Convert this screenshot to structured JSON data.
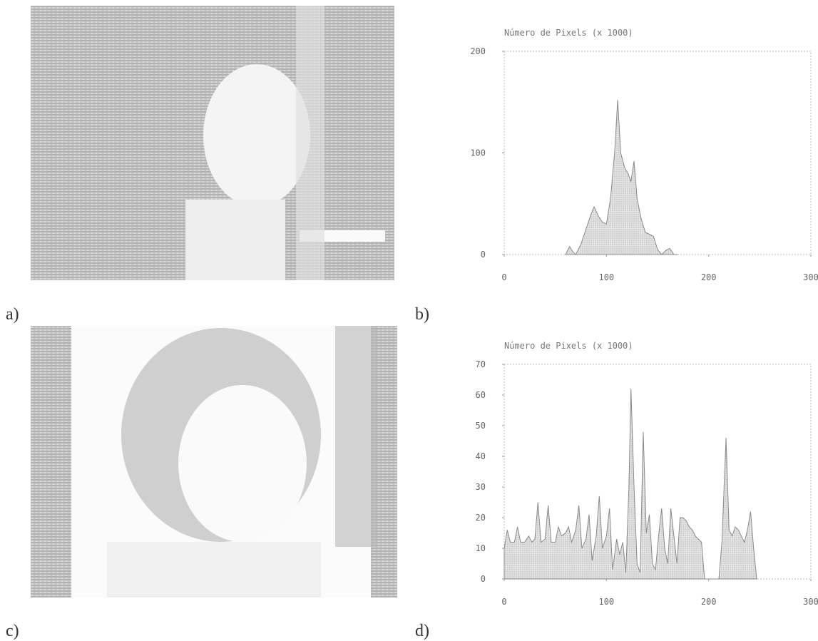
{
  "panel_labels": [
    "a)",
    "b)",
    "c)",
    "d)"
  ],
  "chart_data": [
    {
      "type": "area",
      "title": "Número de Pixels (x 1000)",
      "color": "#8a8a8a",
      "x": [
        60,
        64,
        67,
        70,
        75,
        80,
        85,
        88,
        92,
        96,
        100,
        104,
        108,
        111,
        114,
        118,
        121,
        124,
        127,
        130,
        134,
        138,
        142,
        146,
        150,
        154,
        158,
        162,
        166,
        170
      ],
      "values": [
        0,
        8,
        3,
        0,
        10,
        25,
        40,
        47,
        38,
        32,
        30,
        55,
        100,
        152,
        100,
        85,
        80,
        72,
        92,
        55,
        35,
        22,
        20,
        18,
        5,
        0,
        4,
        6,
        0,
        0
      ],
      "xlim": [
        0,
        300
      ],
      "xticks": [
        0,
        100,
        200,
        300
      ],
      "ylim": [
        0,
        200
      ],
      "yticks": [
        0,
        100,
        200
      ]
    },
    {
      "type": "area",
      "title": "Número de Pixels (x 1000)",
      "color": "#8a8a8a",
      "x": [
        0,
        3,
        6,
        10,
        13,
        16,
        20,
        24,
        27,
        30,
        33,
        36,
        40,
        43,
        46,
        50,
        53,
        56,
        60,
        63,
        66,
        70,
        73,
        76,
        80,
        83,
        86,
        90,
        93,
        96,
        100,
        103,
        106,
        110,
        113,
        116,
        119,
        122,
        124,
        127,
        130,
        133,
        136,
        139,
        142,
        145,
        148,
        151,
        154,
        157,
        160,
        163,
        166,
        169,
        172,
        175,
        178,
        181,
        184,
        187,
        190,
        193,
        196,
        210,
        213,
        217,
        220,
        223,
        226,
        229,
        232,
        235,
        238,
        241,
        244,
        247
      ],
      "values": [
        10,
        16,
        12,
        12,
        17,
        12,
        12,
        14,
        12,
        13,
        25,
        12,
        13,
        24,
        12,
        12,
        17,
        14,
        15,
        17,
        12,
        16,
        24,
        10,
        13,
        21,
        6,
        14,
        27,
        10,
        14,
        23,
        3,
        13,
        8,
        12,
        2,
        30,
        62,
        30,
        5,
        2,
        48,
        15,
        21,
        5,
        3,
        14,
        23,
        10,
        5,
        23,
        14,
        5,
        20,
        20,
        19,
        17,
        16,
        14,
        13,
        12,
        0,
        0,
        12,
        46,
        16,
        14,
        17,
        16,
        14,
        12,
        16,
        22,
        10,
        0
      ],
      "xlim": [
        0,
        300
      ],
      "xticks": [
        0,
        100,
        200,
        300
      ],
      "ylim": [
        0,
        70
      ],
      "yticks": [
        0,
        10,
        20,
        30,
        40,
        50,
        60,
        70
      ]
    }
  ]
}
